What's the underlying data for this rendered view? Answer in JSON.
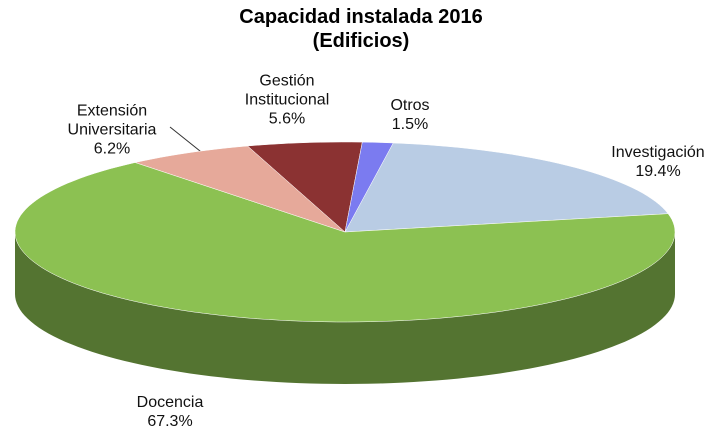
{
  "chart_data": {
    "type": "pie",
    "title": "Capacidad instalada 2016 (Edificios)",
    "categories": [
      "Investigación",
      "Docencia",
      "Extensión Universitaria",
      "Gestión Institucional",
      "Otros"
    ],
    "values": [
      19.4,
      67.3,
      6.2,
      5.6,
      1.5
    ],
    "value_labels": [
      "19.4%",
      "67.3%",
      "6.2%",
      "5.6%",
      "1.5%"
    ],
    "colors": [
      "#b9cce4",
      "#8cc152",
      "#e6a99a",
      "#8b3232",
      "#7b7bf0"
    ]
  }
}
